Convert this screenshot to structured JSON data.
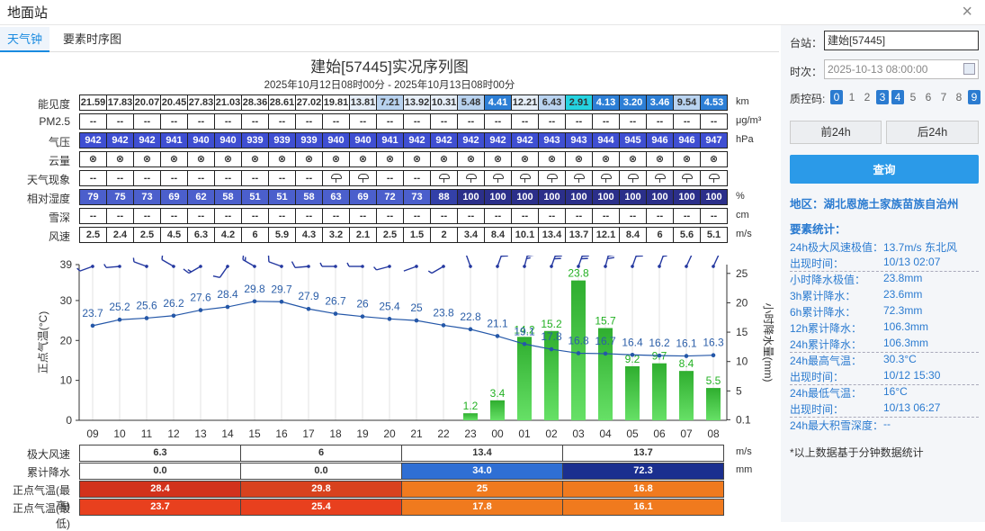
{
  "window": {
    "title": "地面站",
    "close": "×"
  },
  "tabs": [
    {
      "label": "天气钟"
    },
    {
      "label": "要素时序图"
    }
  ],
  "chart_title": "建始[57445]实况序列图",
  "chart_subtitle": "2025年10月12日08时00分 - 2025年10月13日08时00分",
  "hours": [
    "09",
    "10",
    "11",
    "12",
    "13",
    "14",
    "15",
    "16",
    "17",
    "18",
    "19",
    "20",
    "21",
    "22",
    "23",
    "00",
    "01",
    "02",
    "03",
    "04",
    "05",
    "06",
    "07",
    "08"
  ],
  "table": {
    "labels": [
      "能见度",
      "PM2.5",
      "气压",
      "云量",
      "天气现象",
      "相对湿度",
      "雪深",
      "风速"
    ],
    "units": [
      "km",
      "μg/m³",
      "hPa",
      "",
      "",
      "%",
      "cm",
      "m/s"
    ],
    "visibility": [
      "21.59",
      "17.83",
      "20.07",
      "20.45",
      "27.83",
      "21.03",
      "28.36",
      "28.61",
      "27.02",
      "19.81",
      "13.81",
      "7.21",
      "13.92",
      "10.31",
      "5.48",
      "4.41",
      "12.21",
      "6.43",
      "2.91",
      "4.13",
      "3.20",
      "3.46",
      "9.54",
      "4.53"
    ],
    "pm25": [
      "--",
      "--",
      "--",
      "--",
      "--",
      "--",
      "--",
      "--",
      "--",
      "--",
      "--",
      "--",
      "--",
      "--",
      "--",
      "--",
      "--",
      "--",
      "--",
      "--",
      "--",
      "--",
      "--",
      "--"
    ],
    "pressure": [
      "942",
      "942",
      "942",
      "941",
      "940",
      "940",
      "939",
      "939",
      "939",
      "940",
      "940",
      "941",
      "942",
      "942",
      "942",
      "942",
      "942",
      "943",
      "943",
      "944",
      "945",
      "946",
      "946",
      "947"
    ],
    "cloud": [
      "⊗",
      "⊗",
      "⊗",
      "⊗",
      "⊗",
      "⊗",
      "⊗",
      "⊗",
      "⊗",
      "⊗",
      "⊗",
      "⊗",
      "⊗",
      "⊗",
      "⊗",
      "⊗",
      "⊗",
      "⊗",
      "⊗",
      "⊗",
      "⊗",
      "⊗",
      "⊗",
      "⊗"
    ],
    "weather": [
      "--",
      "--",
      "--",
      "--",
      "--",
      "--",
      "--",
      "--",
      "--",
      "rain",
      "rain",
      "--",
      "--",
      "rain",
      "rain",
      "rain",
      "rain",
      "rain",
      "rain",
      "rain",
      "rain",
      "rain",
      "rain",
      "rain"
    ],
    "humidity": [
      "79",
      "75",
      "73",
      "69",
      "62",
      "58",
      "51",
      "51",
      "58",
      "63",
      "69",
      "72",
      "73",
      "88",
      "100",
      "100",
      "100",
      "100",
      "100",
      "100",
      "100",
      "100",
      "100",
      "100"
    ],
    "snow": [
      "--",
      "--",
      "--",
      "--",
      "--",
      "--",
      "--",
      "--",
      "--",
      "--",
      "--",
      "--",
      "--",
      "--",
      "--",
      "--",
      "--",
      "--",
      "--",
      "--",
      "--",
      "--",
      "--",
      "--"
    ],
    "wind": [
      "2.5",
      "2.4",
      "2.5",
      "4.5",
      "6.3",
      "4.2",
      "6",
      "5.9",
      "4.3",
      "3.2",
      "2.1",
      "2.5",
      "1.5",
      "2",
      "3.4",
      "8.4",
      "10.1",
      "13.4",
      "13.7",
      "12.1",
      "8.4",
      "6",
      "5.6",
      "5.1"
    ]
  },
  "chart_data": {
    "type": "line+bar",
    "x": [
      "09",
      "10",
      "11",
      "12",
      "13",
      "14",
      "15",
      "16",
      "17",
      "18",
      "19",
      "20",
      "21",
      "22",
      "23",
      "00",
      "01",
      "02",
      "03",
      "04",
      "05",
      "06",
      "07",
      "08"
    ],
    "ylabel": "正点气温(°C)",
    "y2label": "小时降水量(mm)",
    "ylim": [
      0,
      39
    ],
    "yticks": [
      "0",
      "10",
      "20",
      "30",
      "39"
    ],
    "y2ticks": [
      "0.1",
      "5",
      "10",
      "15",
      "20",
      "25"
    ],
    "series": [
      {
        "values": [
          23.7,
          25.2,
          25.6,
          26.2,
          27.6,
          28.4,
          29.8,
          29.7,
          27.9,
          26.7,
          26,
          25.4,
          25,
          23.8,
          22.8,
          21.1,
          19.1,
          17.8,
          16.8,
          16.7,
          16.4,
          16.2,
          16.1,
          16.3
        ]
      },
      {
        "values": [
          null,
          null,
          null,
          null,
          null,
          null,
          null,
          null,
          null,
          null,
          null,
          null,
          null,
          null,
          1.2,
          3.4,
          14.2,
          15.2,
          23.8,
          15.7,
          9.2,
          9.7,
          8.4,
          5.5
        ]
      }
    ],
    "temp_labels": [
      "23.7",
      "25.2",
      "25.6",
      "26.2",
      "27.6",
      "28.4",
      "29.8",
      "29.7",
      "27.9",
      "26.7",
      "26",
      "25.4",
      "25",
      "23.8",
      "22.8",
      "21.1",
      "19.1",
      "17.8",
      "16.8",
      "16.7",
      "16.4",
      "16.2",
      "16.1",
      "16.3"
    ],
    "rain_labels": [
      "",
      "",
      "",
      "",
      "",
      "",
      "",
      "",
      "",
      "",
      "",
      "",
      "",
      "",
      "1.2",
      "3.4",
      "14.2",
      "15.2",
      "23.8",
      "15.7",
      "9.2",
      "9.7",
      "8.4",
      "5.5"
    ],
    "wind_dir_deg": [
      250,
      265,
      290,
      300,
      240,
      215,
      300,
      290,
      265,
      270,
      270,
      255,
      250,
      240,
      340,
      20,
      15,
      20,
      20,
      15,
      20,
      20,
      25,
      25
    ]
  },
  "stats": {
    "labels": [
      "极大风速",
      "累计降水",
      "正点气温(最高)",
      "正点气温(最低)"
    ],
    "units": [
      "m/s",
      "mm"
    ],
    "max_wind": [
      "6.3",
      "6",
      "13.4",
      "13.7"
    ],
    "rain_sum": [
      "0.0",
      "0.0",
      "34.0",
      "72.3"
    ],
    "temp_max": [
      "28.4",
      "29.8",
      "25",
      "16.8"
    ],
    "temp_min": [
      "23.7",
      "25.4",
      "17.8",
      "16.1"
    ]
  },
  "panel": {
    "station_label": "台站：",
    "station_value": "建始[57445]",
    "time_label": "时次：",
    "time_value": "2025-10-13 08:00:00",
    "qc_label": "质控码:",
    "qc_codes": [
      "0",
      "1",
      "2",
      "3",
      "4",
      "5",
      "6",
      "7",
      "8",
      "9"
    ],
    "prev_button": "前24h",
    "next_button": "后24h",
    "query_button": "查询",
    "region": "地区：湖北恩施土家族苗族自治州",
    "section": "要素统计：",
    "stats_rows": [
      {
        "k": "24h极大风速极值：",
        "v": "13.7m/s 东北风"
      },
      {
        "k": "出现时间：",
        "v": "10/13 02:07"
      },
      {
        "k": "小时降水极值：",
        "v": "23.8mm"
      },
      {
        "k": "3h累计降水：",
        "v": "23.6mm"
      },
      {
        "k": "6h累计降水：",
        "v": "72.3mm"
      },
      {
        "k": "12h累计降水：",
        "v": "106.3mm"
      },
      {
        "k": "24h累计降水：",
        "v": "106.3mm"
      },
      {
        "k": "24h最高气温：",
        "v": "30.3°C"
      },
      {
        "k": "出现时间：",
        "v": "10/12 15:30"
      },
      {
        "k": "24h最低气温：",
        "v": "16°C"
      },
      {
        "k": "出现时间：",
        "v": "10/13 06:27"
      },
      {
        "k": "24h最大积雪深度：",
        "v": "--"
      }
    ],
    "note": "*以上数据基于分钟数据统计"
  },
  "colors": {
    "accent": "#1a8be0",
    "pressure": "#3f4fd2",
    "rain_bar": "#3cc43c",
    "temp_line": "#2457a8",
    "stat_red": "#e8401e",
    "stat_orange": "#f07a1e",
    "stat_blue1": "#2f6fd4",
    "stat_blue2": "#1b2f8f"
  }
}
